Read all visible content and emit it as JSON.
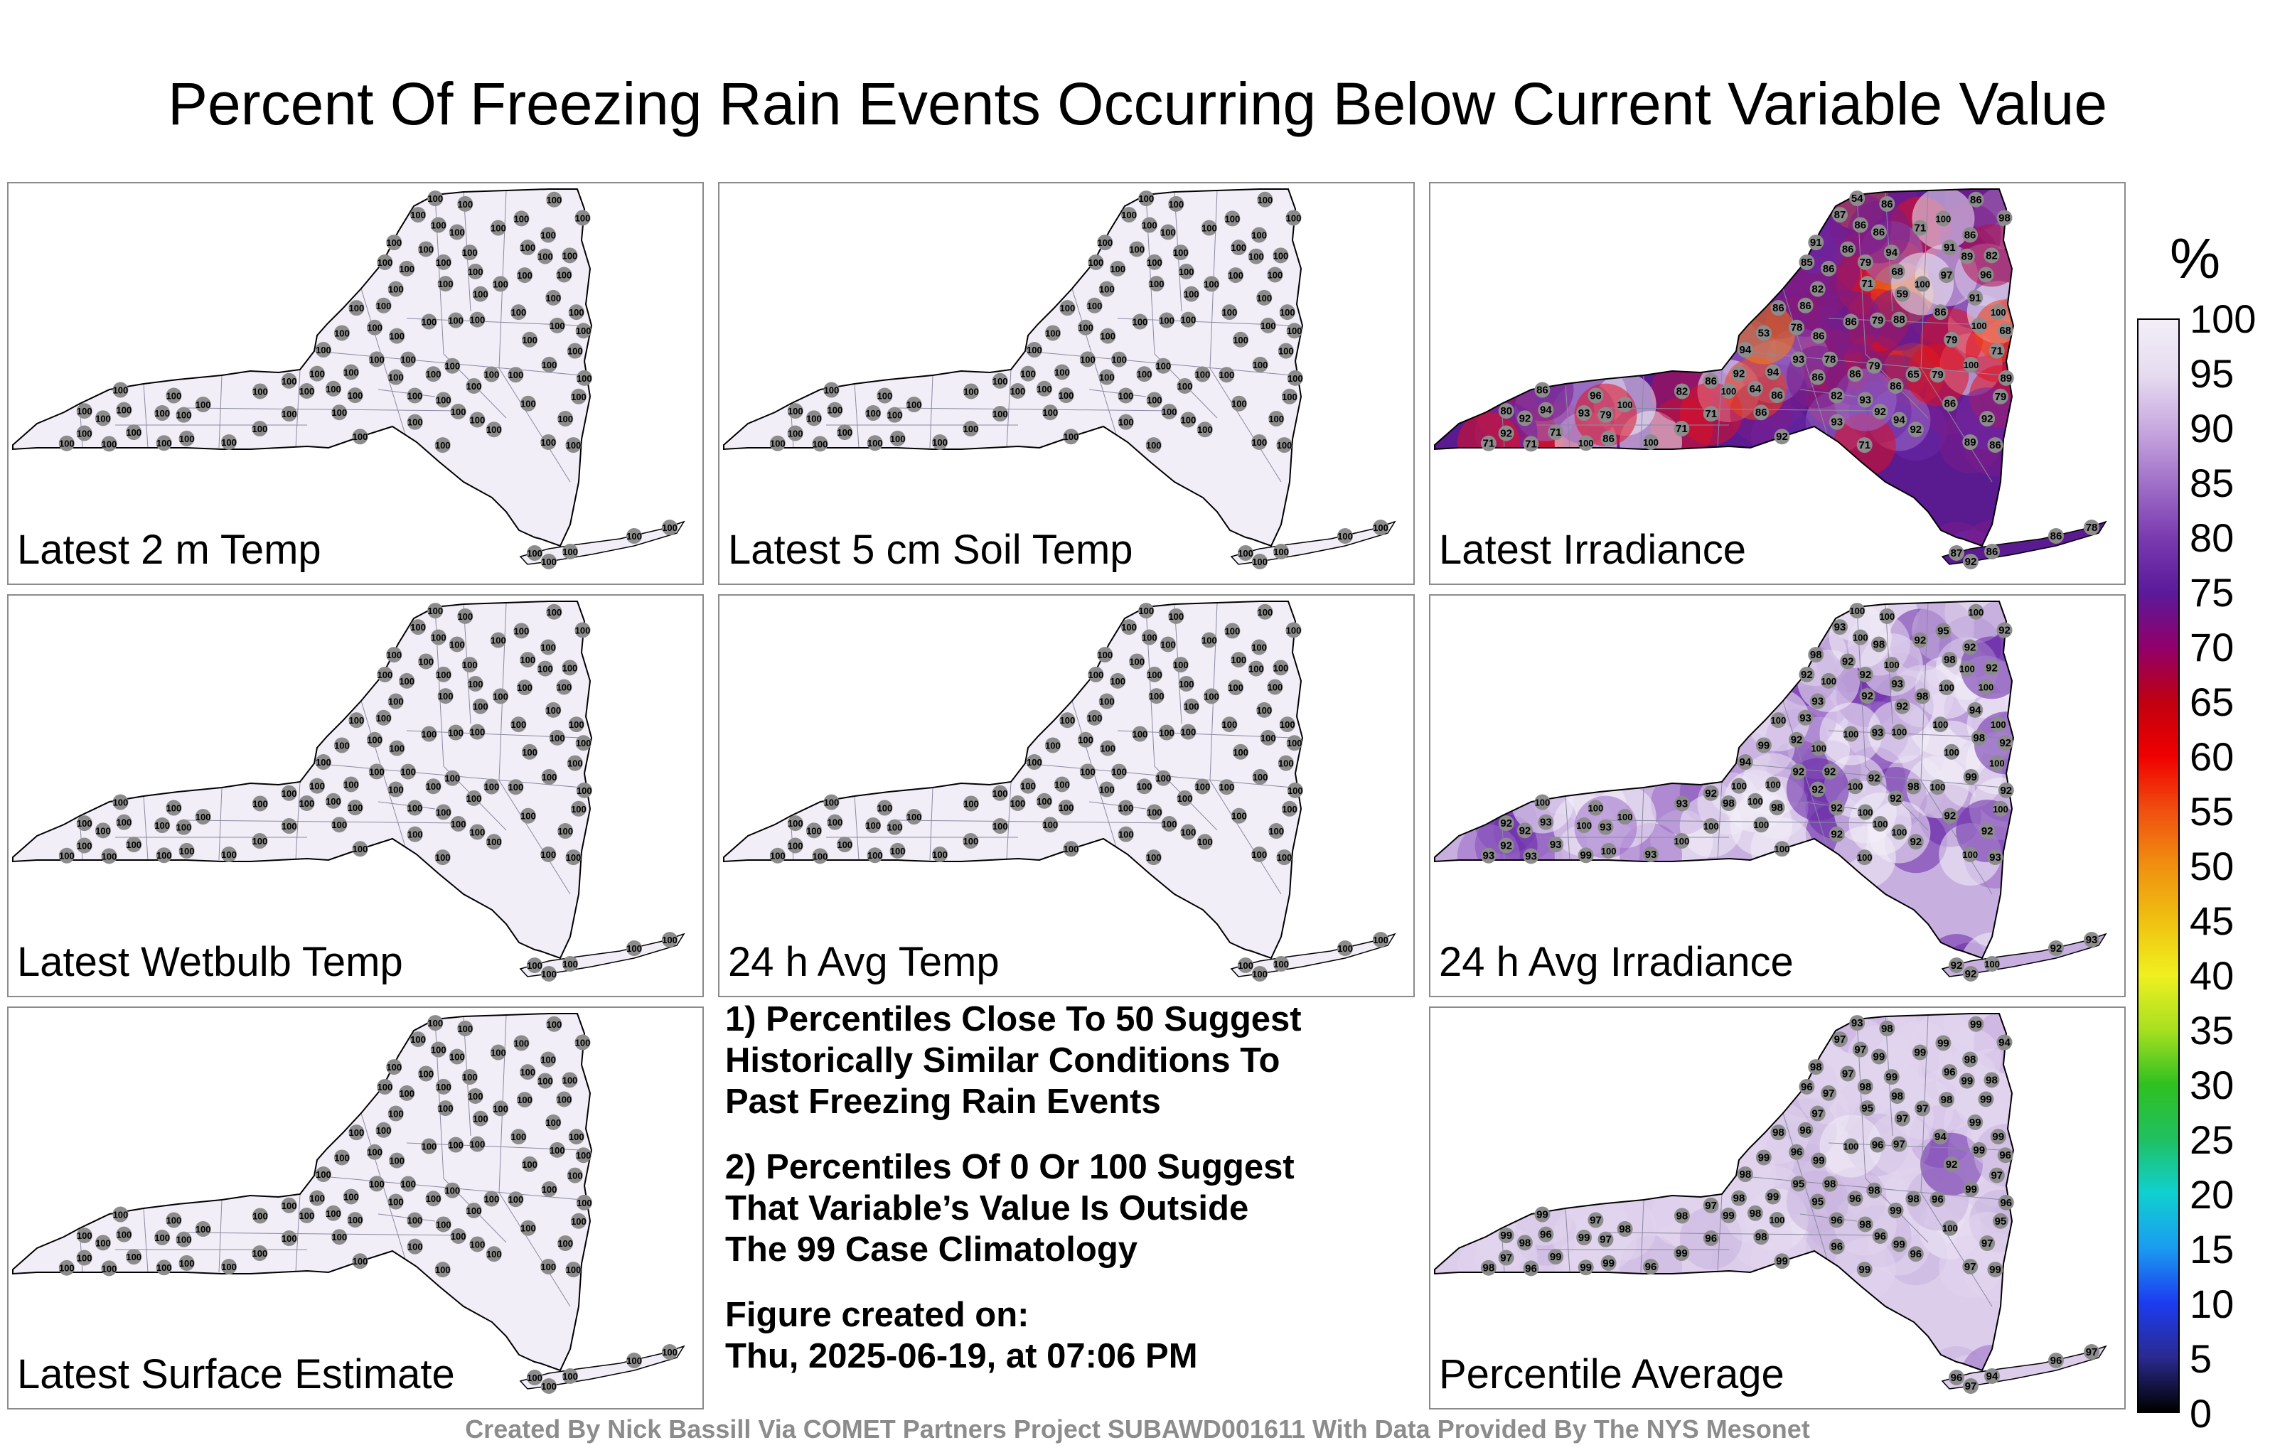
{
  "title": "Percent Of Freezing Rain Events Occurring Below Current Variable Value",
  "colorbar": {
    "unit": "%",
    "ticks": [
      "100",
      "95",
      "90",
      "85",
      "80",
      "75",
      "70",
      "65",
      "60",
      "55",
      "50",
      "45",
      "40",
      "35",
      "30",
      "25",
      "20",
      "15",
      "10",
      "5",
      "0"
    ],
    "colors": [
      "#000000",
      "#2a2a90",
      "#1c3cf0",
      "#1a9cf0",
      "#10d0d0",
      "#20c060",
      "#30c020",
      "#a8e020",
      "#f0f020",
      "#f0c010",
      "#f09010",
      "#f05010",
      "#f00000",
      "#c00010",
      "#90006a",
      "#5a1a9a",
      "#7a3ab0",
      "#a070c8",
      "#c8a8e0",
      "#e6dcf0",
      "#f3eef8"
    ]
  },
  "panels": [
    {
      "label": "Latest 2 m Temp",
      "palette": "uniform100"
    },
    {
      "label": "Latest 5 cm Soil Temp",
      "palette": "uniform100"
    },
    {
      "label": "Latest Irradiance",
      "palette": "irradiance"
    },
    {
      "label": "Latest Wetbulb Temp",
      "palette": "uniform100"
    },
    {
      "label": "24 h Avg Temp",
      "palette": "uniform100"
    },
    {
      "label": "24 h Avg Irradiance",
      "palette": "avgirr"
    },
    {
      "label": "Latest Surface Estimate",
      "palette": "uniform100"
    },
    {
      "label": "Percentile Average",
      "palette": "average"
    }
  ],
  "stations": {
    "uniform100": [
      "100",
      "100",
      "100",
      "100",
      "100",
      "100",
      "100",
      "100",
      "100",
      "100",
      "100",
      "100",
      "100",
      "100",
      "100",
      "100",
      "100",
      "100",
      "100",
      "100",
      "100",
      "100",
      "100",
      "100",
      "100",
      "100",
      "100",
      "100",
      "100",
      "100",
      "100",
      "100",
      "100",
      "100",
      "100",
      "100",
      "100",
      "100",
      "100",
      "100",
      "100",
      "100",
      "100",
      "100",
      "100",
      "100",
      "100",
      "100",
      "100",
      "100",
      "100",
      "100",
      "100",
      "100",
      "100",
      "100",
      "100",
      "100",
      "100",
      "100",
      "100",
      "100",
      "100",
      "100",
      "100",
      "100",
      "100",
      "100",
      "100",
      "100",
      "100",
      "100",
      "100",
      "100",
      "100",
      "100",
      "100",
      "100",
      "100",
      "100",
      "100",
      "100",
      "100",
      "100",
      "100",
      "100",
      "100",
      "100",
      "100",
      "100",
      "100",
      "100",
      "100",
      "100",
      "100",
      "100",
      "100",
      "100",
      "100",
      "100",
      "100",
      "100",
      "100",
      "100",
      "100",
      "100",
      "100",
      "100",
      "100",
      "100",
      "100",
      "100",
      "100",
      "100",
      "100",
      "100",
      "100",
      "100",
      "100",
      "100",
      "100",
      "100",
      "100",
      "100",
      "100",
      "100"
    ],
    "irradiance": [
      "86",
      "71",
      "68",
      "82",
      "79",
      "87",
      "92",
      "86",
      "86",
      "78",
      "82",
      "92",
      "86",
      "71",
      "86",
      "93",
      "78",
      "86",
      "98",
      "93",
      "65",
      "54",
      "86",
      "71",
      "100",
      "91",
      "100",
      "96",
      "71",
      "80",
      "86",
      "89",
      "79",
      "59",
      "71",
      "85",
      "79",
      "82",
      "86",
      "86",
      "91",
      "94",
      "88",
      "92",
      "86",
      "86",
      "100",
      "100",
      "86",
      "89",
      "89",
      "100",
      "71",
      "92",
      "94",
      "100",
      "92",
      "100",
      "96",
      "86",
      "97",
      "93",
      "94",
      "79",
      "94",
      "86",
      "94",
      "92",
      "71",
      "86",
      "86",
      "93",
      "79",
      "71",
      "79",
      "86",
      "64",
      "53",
      "91",
      "100",
      "86",
      "86",
      "100",
      "86",
      "92"
    ],
    "avgirr": [
      "92",
      "92",
      "93",
      "92",
      "92",
      "93",
      "92",
      "92",
      "100",
      "92",
      "93",
      "92",
      "93",
      "93",
      "100",
      "92",
      "92",
      "100",
      "92",
      "92",
      "98",
      "100",
      "100",
      "100",
      "93",
      "98",
      "98",
      "100",
      "93",
      "92",
      "93",
      "92",
      "92",
      "92",
      "92",
      "92",
      "93",
      "93",
      "92",
      "92",
      "94",
      "93",
      "100",
      "100",
      "92",
      "98",
      "100",
      "99",
      "100",
      "100",
      "100",
      "99",
      "100",
      "100",
      "94",
      "95",
      "92",
      "98",
      "100",
      "100",
      "100",
      "100",
      "100",
      "100",
      "100",
      "100",
      "100",
      "100",
      "100",
      "100",
      "100",
      "100",
      "100",
      "100",
      "100",
      "100",
      "100",
      "99",
      "98",
      "98",
      "98",
      "100",
      "100",
      "100"
    ],
    "average": [
      "97",
      "95",
      "98",
      "96",
      "98",
      "97",
      "96",
      "97",
      "94",
      "96",
      "97",
      "98",
      "99",
      "96",
      "99",
      "96",
      "98",
      "99",
      "94",
      "95",
      "98",
      "93",
      "98",
      "99",
      "96",
      "96",
      "99",
      "97",
      "99",
      "99",
      "96",
      "96",
      "98",
      "97",
      "99",
      "96",
      "96",
      "98",
      "100",
      "98",
      "99",
      "96",
      "97",
      "98",
      "99",
      "100",
      "98",
      "99",
      "99",
      "99",
      "97",
      "99",
      "97",
      "99",
      "98",
      "99",
      "97",
      "99",
      "99",
      "96",
      "98",
      "99",
      "99",
      "96",
      "99",
      "98",
      "99",
      "96",
      "99",
      "97",
      "99",
      "98",
      "95",
      "96",
      "92",
      "98",
      "98",
      "99",
      "98",
      "97",
      "99",
      "100",
      "99",
      "97"
    ]
  },
  "notes": [
    {
      "lines": [
        "1) Percentiles Close To 50 Suggest",
        "Historically Similar Conditions To",
        "Past Freezing Rain Events"
      ]
    },
    {
      "lines": [
        "2) Percentiles Of 0 Or 100 Suggest",
        "That Variable’s Value Is Outside",
        "The 99 Case Climatology"
      ]
    },
    {
      "lines": [
        "Figure created on:",
        "Thu, 2025-06-19, at 07:06 PM"
      ]
    }
  ],
  "footer": "Created By Nick Bassill Via COMET Partners Project SUBAWD001611 With Data Provided By The NYS Mesonet"
}
